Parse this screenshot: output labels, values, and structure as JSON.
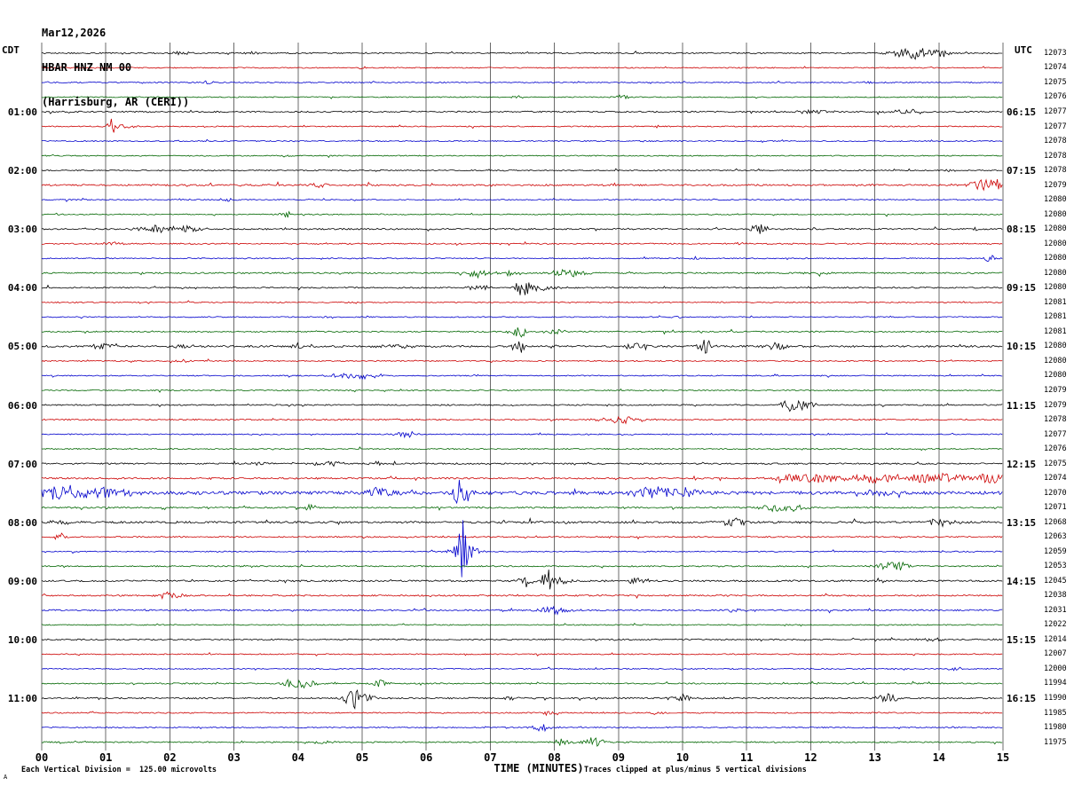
{
  "title": {
    "date": "Mar12,2026",
    "station": "HBAR HNZ NM 00",
    "location": "(Harrisburg, AR (CERI))"
  },
  "axis": {
    "left_tz": "CDT",
    "right_tz": "UTC",
    "x_label": "TIME (MINUTES)",
    "x_ticks": [
      "00",
      "01",
      "02",
      "03",
      "04",
      "05",
      "06",
      "07",
      "08",
      "09",
      "10",
      "11",
      "12",
      "13",
      "14",
      "15"
    ],
    "footer_left": "Each Vertical Division =  125.00 microvolts",
    "footer_right": "Traces clipped at plus/minus 5 vertical divisions",
    "corner_mark": "A"
  },
  "palette": {
    "black": "#000000",
    "red": "#cc0000",
    "blue": "#0000cc",
    "green": "#006600",
    "grid": "#6b6b6b"
  },
  "chart_data": {
    "type": "line",
    "x_unit": "minutes",
    "x_range": [
      0,
      15
    ],
    "row_duration_minutes": 15,
    "volts_per_division": "125.00 microvolts",
    "clip_divisions": 5,
    "rows": [
      {
        "cdt": "",
        "utc": "",
        "counts": 12073,
        "color": "black",
        "noise": 0.7,
        "events": [
          [
            2.2,
            3,
            0.15
          ],
          [
            3.3,
            2,
            0.1
          ],
          [
            13.6,
            8,
            0.3
          ],
          [
            14.0,
            4,
            0.2
          ]
        ]
      },
      {
        "cdt": "",
        "utc": "",
        "counts": 12074,
        "color": "red",
        "noise": 0.6,
        "events": [
          [
            5.0,
            1.5,
            0.1
          ]
        ]
      },
      {
        "cdt": "",
        "utc": "",
        "counts": 12075,
        "color": "blue",
        "noise": 0.6,
        "events": [
          [
            2.6,
            2,
            0.12
          ],
          [
            12.9,
            2,
            0.1
          ]
        ]
      },
      {
        "cdt": "",
        "utc": "",
        "counts": 12076,
        "color": "green",
        "noise": 0.6,
        "events": [
          [
            7.4,
            2,
            0.1
          ],
          [
            9.05,
            2.5,
            0.15
          ]
        ]
      },
      {
        "cdt": "01:00",
        "utc": "06:15",
        "counts": 12077,
        "color": "black",
        "noise": 0.8,
        "events": [
          [
            12.0,
            2,
            0.3
          ],
          [
            13.5,
            2.5,
            0.3
          ]
        ]
      },
      {
        "cdt": "",
        "utc": "",
        "counts": 12077,
        "color": "red",
        "noise": 0.6,
        "events": [
          [
            1.1,
            9,
            0.08
          ],
          [
            1.3,
            3,
            0.15
          ]
        ]
      },
      {
        "cdt": "",
        "utc": "",
        "counts": 12078,
        "color": "blue",
        "noise": 0.6,
        "events": []
      },
      {
        "cdt": "",
        "utc": "",
        "counts": 12078,
        "color": "green",
        "noise": 0.6,
        "events": [
          [
            3.8,
            1.5,
            0.1
          ]
        ]
      },
      {
        "cdt": "02:00",
        "utc": "07:15",
        "counts": 12078,
        "color": "black",
        "noise": 0.6,
        "events": [
          [
            14.2,
            1.5,
            0.1
          ]
        ]
      },
      {
        "cdt": "",
        "utc": "",
        "counts": 12079,
        "color": "red",
        "noise": 0.9,
        "events": [
          [
            4.3,
            3,
            0.2
          ],
          [
            9.0,
            2,
            0.15
          ],
          [
            14.8,
            7,
            0.3
          ]
        ]
      },
      {
        "cdt": "",
        "utc": "",
        "counts": 12080,
        "color": "blue",
        "noise": 0.6,
        "events": [
          [
            2.9,
            2.5,
            0.12
          ]
        ]
      },
      {
        "cdt": "",
        "utc": "",
        "counts": 12080,
        "color": "green",
        "noise": 0.6,
        "events": [
          [
            3.85,
            5,
            0.08
          ]
        ]
      },
      {
        "cdt": "03:00",
        "utc": "08:15",
        "counts": 12080,
        "color": "black",
        "noise": 0.8,
        "events": [
          [
            1.8,
            4,
            0.3
          ],
          [
            2.3,
            4,
            0.2
          ],
          [
            11.2,
            5,
            0.15
          ],
          [
            14.6,
            2,
            0.1
          ]
        ]
      },
      {
        "cdt": "",
        "utc": "",
        "counts": 12080,
        "color": "red",
        "noise": 0.7,
        "events": [
          [
            1.1,
            2.5,
            0.15
          ],
          [
            10.9,
            1.5,
            0.1
          ]
        ]
      },
      {
        "cdt": "",
        "utc": "",
        "counts": 12080,
        "color": "blue",
        "noise": 0.6,
        "events": [
          [
            10.2,
            1.5,
            0.1
          ],
          [
            14.8,
            4,
            0.1
          ]
        ]
      },
      {
        "cdt": "",
        "utc": "",
        "counts": 12080,
        "color": "green",
        "noise": 0.8,
        "events": [
          [
            6.8,
            6,
            0.15
          ],
          [
            7.3,
            3,
            0.2
          ],
          [
            8.2,
            4,
            0.3
          ],
          [
            12.1,
            2,
            0.2
          ]
        ]
      },
      {
        "cdt": "04:00",
        "utc": "09:15",
        "counts": 12080,
        "color": "black",
        "noise": 0.7,
        "events": [
          [
            6.8,
            3,
            0.2
          ],
          [
            7.5,
            10,
            0.12
          ],
          [
            7.8,
            3,
            0.3
          ]
        ]
      },
      {
        "cdt": "",
        "utc": "",
        "counts": 12081,
        "color": "red",
        "noise": 0.6,
        "events": []
      },
      {
        "cdt": "",
        "utc": "",
        "counts": 12081,
        "color": "blue",
        "noise": 0.6,
        "events": [
          [
            4.5,
            1.5,
            0.1
          ],
          [
            9.9,
            1.5,
            0.1
          ]
        ]
      },
      {
        "cdt": "",
        "utc": "",
        "counts": 12081,
        "color": "green",
        "noise": 0.7,
        "events": [
          [
            7.45,
            8,
            0.1
          ],
          [
            8.0,
            3,
            0.15
          ]
        ]
      },
      {
        "cdt": "05:00",
        "utc": "10:15",
        "counts": 12080,
        "color": "black",
        "noise": 1.0,
        "events": [
          [
            1.0,
            4,
            0.2
          ],
          [
            2.2,
            3,
            0.15
          ],
          [
            4.0,
            3,
            0.1
          ],
          [
            5.5,
            2,
            0.3
          ],
          [
            7.45,
            10,
            0.1
          ],
          [
            9.3,
            9,
            0.15
          ],
          [
            10.35,
            8,
            0.12
          ],
          [
            11.5,
            4,
            0.2
          ]
        ]
      },
      {
        "cdt": "",
        "utc": "",
        "counts": 12080,
        "color": "red",
        "noise": 0.6,
        "events": [
          [
            2.2,
            2,
            0.1
          ]
        ]
      },
      {
        "cdt": "",
        "utc": "",
        "counts": 12080,
        "color": "blue",
        "noise": 0.6,
        "events": [
          [
            4.6,
            2,
            0.2
          ],
          [
            5.0,
            4,
            0.3
          ]
        ]
      },
      {
        "cdt": "",
        "utc": "",
        "counts": 12079,
        "color": "green",
        "noise": 0.6,
        "events": []
      },
      {
        "cdt": "06:00",
        "utc": "11:15",
        "counts": 12079,
        "color": "black",
        "noise": 0.7,
        "events": [
          [
            11.7,
            8,
            0.15
          ],
          [
            11.9,
            4,
            0.2
          ]
        ]
      },
      {
        "cdt": "",
        "utc": "",
        "counts": 12078,
        "color": "red",
        "noise": 0.7,
        "events": [
          [
            8.8,
            2,
            0.2
          ],
          [
            9.1,
            4,
            0.3
          ]
        ]
      },
      {
        "cdt": "",
        "utc": "",
        "counts": 12077,
        "color": "blue",
        "noise": 0.6,
        "events": [
          [
            5.7,
            4,
            0.2
          ]
        ]
      },
      {
        "cdt": "",
        "utc": "",
        "counts": 12076,
        "color": "green",
        "noise": 0.6,
        "events": []
      },
      {
        "cdt": "07:00",
        "utc": "12:15",
        "counts": 12075,
        "color": "black",
        "noise": 0.8,
        "events": [
          [
            3.4,
            2,
            0.2
          ],
          [
            4.5,
            3,
            0.25
          ],
          [
            5.2,
            4,
            0.1
          ]
        ]
      },
      {
        "cdt": "",
        "utc": "",
        "counts": 12074,
        "color": "red",
        "noise": 0.9,
        "events": [
          [
            11.6,
            3,
            0.2
          ],
          [
            12.0,
            5,
            0.5
          ],
          [
            13.0,
            5,
            0.5
          ],
          [
            14.0,
            6,
            0.6
          ],
          [
            14.8,
            6,
            0.3
          ]
        ]
      },
      {
        "cdt": "",
        "utc": "",
        "counts": 12070,
        "color": "blue",
        "noise": 1.8,
        "events": [
          [
            0.3,
            8,
            0.4
          ],
          [
            1.0,
            6,
            0.4
          ],
          [
            5.3,
            6,
            0.3
          ],
          [
            6.55,
            18,
            0.12
          ],
          [
            9.6,
            6,
            0.4
          ],
          [
            10.0,
            5,
            0.3
          ],
          [
            13.0,
            3,
            0.3
          ]
        ]
      },
      {
        "cdt": "",
        "utc": "",
        "counts": 12071,
        "color": "green",
        "noise": 0.8,
        "events": [
          [
            4.2,
            4,
            0.1
          ],
          [
            11.5,
            5,
            0.3
          ],
          [
            11.7,
            4,
            0.2
          ]
        ]
      },
      {
        "cdt": "08:00",
        "utc": "13:15",
        "counts": 12068,
        "color": "black",
        "noise": 1.1,
        "events": [
          [
            0.3,
            2,
            0.2
          ],
          [
            10.8,
            5,
            0.2
          ],
          [
            14.0,
            4,
            0.25
          ]
        ]
      },
      {
        "cdt": "",
        "utc": "",
        "counts": 12063,
        "color": "red",
        "noise": 0.7,
        "events": [
          [
            0.3,
            5,
            0.1
          ]
        ]
      },
      {
        "cdt": "",
        "utc": "",
        "counts": 12059,
        "color": "blue",
        "noise": 0.6,
        "events": [
          [
            6.55,
            65,
            0.06
          ],
          [
            6.6,
            10,
            0.2
          ]
        ]
      },
      {
        "cdt": "",
        "utc": "",
        "counts": 12053,
        "color": "green",
        "noise": 0.7,
        "events": [
          [
            13.3,
            5,
            0.3
          ]
        ]
      },
      {
        "cdt": "09:00",
        "utc": "14:15",
        "counts": 12045,
        "color": "black",
        "noise": 0.9,
        "events": [
          [
            7.55,
            8,
            0.1
          ],
          [
            7.9,
            12,
            0.12
          ],
          [
            8.1,
            4,
            0.2
          ],
          [
            9.3,
            3,
            0.2
          ]
        ]
      },
      {
        "cdt": "",
        "utc": "",
        "counts": 12038,
        "color": "red",
        "noise": 0.8,
        "events": [
          [
            2.0,
            4,
            0.2
          ]
        ]
      },
      {
        "cdt": "",
        "utc": "",
        "counts": 12031,
        "color": "blue",
        "noise": 0.8,
        "events": [
          [
            8.0,
            5,
            0.25
          ],
          [
            10.8,
            2,
            0.15
          ]
        ]
      },
      {
        "cdt": "",
        "utc": "",
        "counts": 12022,
        "color": "green",
        "noise": 0.6,
        "events": []
      },
      {
        "cdt": "10:00",
        "utc": "15:15",
        "counts": 12014,
        "color": "black",
        "noise": 0.7,
        "events": [
          [
            13.9,
            2,
            0.2
          ]
        ]
      },
      {
        "cdt": "",
        "utc": "",
        "counts": 12007,
        "color": "red",
        "noise": 0.6,
        "events": []
      },
      {
        "cdt": "",
        "utc": "",
        "counts": 12000,
        "color": "blue",
        "noise": 0.6,
        "events": [
          [
            14.3,
            2,
            0.15
          ]
        ]
      },
      {
        "cdt": "",
        "utc": "",
        "counts": 11994,
        "color": "green",
        "noise": 0.7,
        "events": [
          [
            3.9,
            6,
            0.15
          ],
          [
            4.1,
            4,
            0.2
          ],
          [
            5.3,
            6,
            0.12
          ]
        ]
      },
      {
        "cdt": "11:00",
        "utc": "16:15",
        "counts": 11990,
        "color": "black",
        "noise": 0.8,
        "events": [
          [
            4.85,
            14,
            0.12
          ],
          [
            5.0,
            5,
            0.2
          ],
          [
            7.3,
            2,
            0.15
          ],
          [
            10.0,
            4,
            0.2
          ],
          [
            13.2,
            6,
            0.15
          ]
        ]
      },
      {
        "cdt": "",
        "utc": "",
        "counts": 11985,
        "color": "red",
        "noise": 0.7,
        "events": [
          [
            7.9,
            4,
            0.1
          ],
          [
            9.6,
            2,
            0.1
          ]
        ]
      },
      {
        "cdt": "",
        "utc": "",
        "counts": 11980,
        "color": "blue",
        "noise": 0.6,
        "events": [
          [
            7.8,
            4,
            0.2
          ],
          [
            14.2,
            2,
            0.1
          ]
        ]
      },
      {
        "cdt": "",
        "utc": "",
        "counts": 11975,
        "color": "green",
        "noise": 0.7,
        "events": [
          [
            4.4,
            2,
            0.15
          ],
          [
            8.1,
            5,
            0.15
          ],
          [
            8.6,
            5,
            0.2
          ]
        ]
      }
    ]
  }
}
